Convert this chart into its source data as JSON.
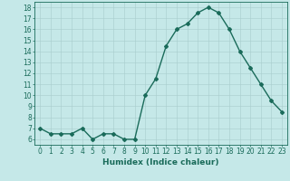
{
  "x": [
    0,
    1,
    2,
    3,
    4,
    5,
    6,
    7,
    8,
    9,
    10,
    11,
    12,
    13,
    14,
    15,
    16,
    17,
    18,
    19,
    20,
    21,
    22,
    23
  ],
  "y": [
    7.0,
    6.5,
    6.5,
    6.5,
    7.0,
    6.0,
    6.5,
    6.5,
    6.0,
    6.0,
    10.0,
    11.5,
    14.5,
    16.0,
    16.5,
    17.5,
    18.0,
    17.5,
    16.0,
    14.0,
    12.5,
    11.0,
    9.5,
    8.5
  ],
  "line_color": "#1a6b5a",
  "marker": "D",
  "marker_size": 2.0,
  "bg_color": "#c5e8e8",
  "grid_color": "#a8cccc",
  "xlabel": "Humidex (Indice chaleur)",
  "ylim": [
    5.5,
    18.5
  ],
  "yticks": [
    6,
    7,
    8,
    9,
    10,
    11,
    12,
    13,
    14,
    15,
    16,
    17,
    18
  ],
  "xlim": [
    -0.5,
    23.5
  ],
  "xticks": [
    0,
    1,
    2,
    3,
    4,
    5,
    6,
    7,
    8,
    9,
    10,
    11,
    12,
    13,
    14,
    15,
    16,
    17,
    18,
    19,
    20,
    21,
    22,
    23
  ],
  "tick_color": "#1a6b5a",
  "label_fontsize": 6.5,
  "tick_fontsize": 5.5,
  "linewidth": 1.0
}
